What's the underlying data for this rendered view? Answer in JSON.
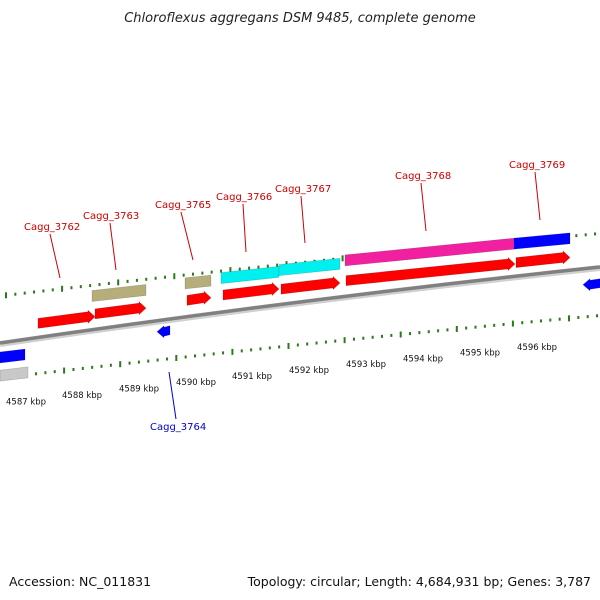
{
  "title": "Chloroflexus aggregans DSM 9485, complete genome",
  "accession": "Accession: NC_011831",
  "summary": "Topology: circular; Length: 4,684,931 bp; Genes: 3,787",
  "colors": {
    "background": "#ffffff",
    "backbone": "#808080",
    "tick": "#2a7a1a",
    "cds": "#ff0000",
    "cds_dark": "#b00000",
    "trna": "#0000ff",
    "hit_olive": "#b5ad7a",
    "hit_cyan": "#00f0f0",
    "hit_magenta": "#f020a0",
    "hit_blue": "#0000ff",
    "hit_gray": "#c8c8c8",
    "label_forward": "#cc0000",
    "label_reverse": "#0000cc"
  },
  "kbp_labels": [
    "4587 kbp",
    "4588 kbp",
    "4589 kbp",
    "4590 kbp",
    "4591 kbp",
    "4592 kbp",
    "4593 kbp",
    "4594 kbp",
    "4595 kbp",
    "4596 kbp"
  ],
  "gene_labels": [
    {
      "id": "cagg-3762",
      "text": "Cagg_3762",
      "strand": "forward"
    },
    {
      "id": "cagg-3763",
      "text": "Cagg_3763",
      "strand": "forward"
    },
    {
      "id": "cagg-3764",
      "text": "Cagg_3764",
      "strand": "reverse"
    },
    {
      "id": "cagg-3765",
      "text": "Cagg_3765",
      "strand": "forward"
    },
    {
      "id": "cagg-3766",
      "text": "Cagg_3766",
      "strand": "forward"
    },
    {
      "id": "cagg-3767",
      "text": "Cagg_3767",
      "strand": "forward"
    },
    {
      "id": "cagg-3768",
      "text": "Cagg_3768",
      "strand": "forward"
    },
    {
      "id": "cagg-3769",
      "text": "Cagg_3769",
      "strand": "forward"
    }
  ]
}
